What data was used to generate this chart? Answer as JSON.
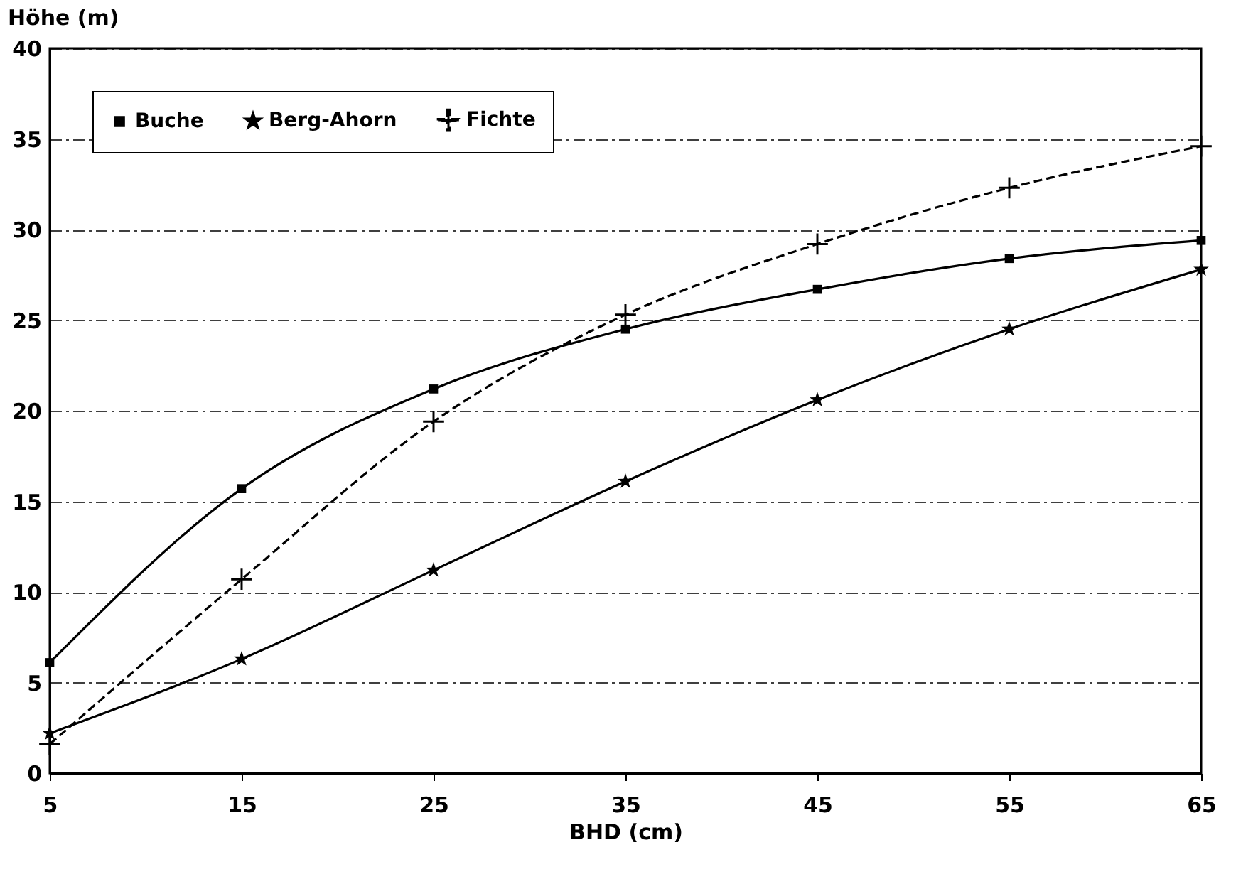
{
  "chart_data": {
    "type": "line",
    "xlabel": "BHD (cm)",
    "ylabel": "Höhe (m)",
    "x": [
      5,
      15,
      25,
      35,
      45,
      55,
      65
    ],
    "series": [
      {
        "name": "Buche",
        "color": "#000000",
        "marker": "square",
        "line_style": "solid",
        "values": [
          6.1,
          15.7,
          21.2,
          24.5,
          26.7,
          28.4,
          29.4
        ]
      },
      {
        "name": "Berg-Ahorn",
        "color": "#000000",
        "marker": "star",
        "line_style": "solid",
        "values": [
          2.2,
          6.3,
          11.2,
          16.1,
          20.6,
          24.5,
          27.8
        ]
      },
      {
        "name": "Fichte",
        "color": "#000000",
        "marker": "cross",
        "line_style": "dashed",
        "values": [
          1.6,
          10.7,
          19.4,
          25.3,
          29.2,
          32.3,
          34.6
        ]
      }
    ],
    "xlim": [
      5,
      65
    ],
    "xticks": [
      5,
      15,
      25,
      35,
      45,
      55,
      65
    ],
    "ylim": [
      0,
      40
    ],
    "yticks": [
      0,
      5,
      10,
      15,
      20,
      25,
      30,
      35,
      40
    ],
    "grid": "y",
    "legend": "top left"
  }
}
